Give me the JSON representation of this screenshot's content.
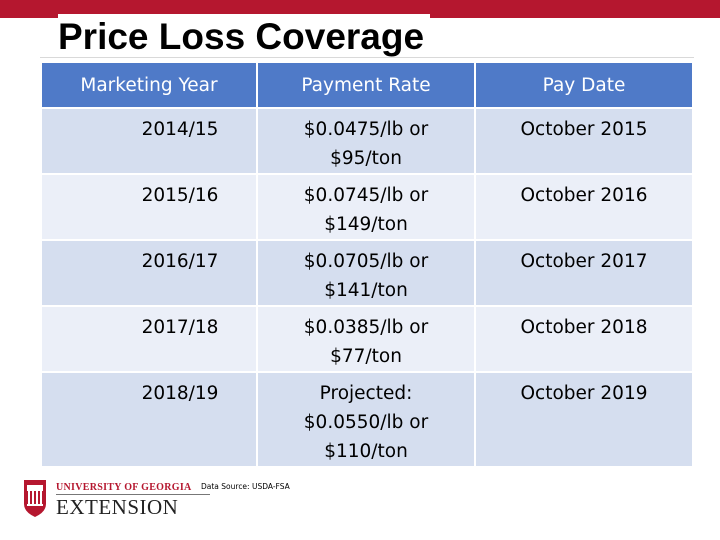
{
  "slide": {
    "title": "Price Loss Coverage",
    "accent_color": "#b5172f",
    "header_color": "#4f7ac8"
  },
  "table": {
    "headers": [
      "Marketing Year",
      "Payment Rate",
      "Pay Date"
    ],
    "rows": [
      {
        "year": "2014/15",
        "rate_line1": "$0.0475/lb or",
        "rate_line2": "$95/ton",
        "rate_line3": "",
        "pay_date": "October 2015"
      },
      {
        "year": "2015/16",
        "rate_line1": "$0.0745/lb or",
        "rate_line2": "$149/ton",
        "rate_line3": "",
        "pay_date": "October 2016"
      },
      {
        "year": "2016/17",
        "rate_line1": "$0.0705/lb or",
        "rate_line2": "$141/ton",
        "rate_line3": "",
        "pay_date": "October 2017"
      },
      {
        "year": "2017/18",
        "rate_line1": "$0.0385/lb or",
        "rate_line2": "$77/ton",
        "rate_line3": "",
        "pay_date": "October 2018"
      },
      {
        "year": "2018/19",
        "rate_line1": "Projected:",
        "rate_line2": "$0.0550/lb or",
        "rate_line3": "$110/ton",
        "pay_date": "October 2019"
      }
    ]
  },
  "footer": {
    "logo_top": "UNIVERSITY OF GEORGIA",
    "logo_bottom": "EXTENSION",
    "source": "Data Source: USDA-FSA"
  }
}
